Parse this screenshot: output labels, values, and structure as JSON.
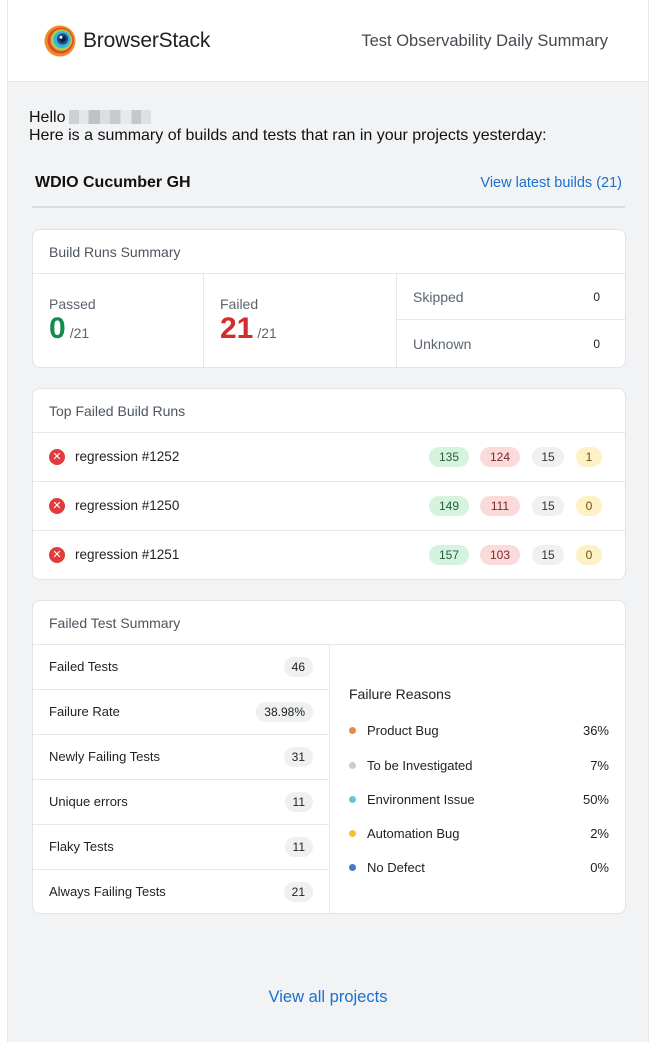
{
  "header": {
    "brand": "BrowserStack",
    "title": "Test Observability Daily Summary"
  },
  "greeting": {
    "hello": "Hello",
    "summary": "Here is a summary of builds and tests that ran in your projects yesterday:"
  },
  "project": {
    "name": "WDIO Cucumber GH",
    "latest_link": "View latest builds (21)"
  },
  "build_runs_summary": {
    "title": "Build Runs Summary",
    "passed_label": "Passed",
    "passed_value": "0",
    "failed_label": "Failed",
    "failed_value": "21",
    "total": "/21",
    "skipped_label": "Skipped",
    "skipped_value": "0",
    "unknown_label": "Unknown",
    "unknown_value": "0"
  },
  "top_failed": {
    "title": "Top Failed Build Runs",
    "runs": [
      {
        "name": "regression #1252",
        "passed": "135",
        "failed": "124",
        "skipped": "15",
        "unknown": "1"
      },
      {
        "name": "regression #1250",
        "passed": "149",
        "failed": "111",
        "skipped": "15",
        "unknown": "0"
      },
      {
        "name": "regression #1251",
        "passed": "157",
        "failed": "103",
        "skipped": "15",
        "unknown": "0"
      }
    ]
  },
  "failed_test_summary": {
    "title": "Failed Test Summary",
    "metrics": [
      {
        "label": "Failed Tests",
        "value": "46"
      },
      {
        "label": "Failure Rate",
        "value": "38.98%"
      },
      {
        "label": "Newly Failing Tests",
        "value": "31"
      },
      {
        "label": "Unique errors",
        "value": "11"
      },
      {
        "label": "Flaky Tests",
        "value": "11"
      },
      {
        "label": "Always Failing Tests",
        "value": "21"
      }
    ],
    "reasons_title": "Failure Reasons",
    "reasons": [
      {
        "label": "Product Bug",
        "pct": "36%",
        "color": "#e8894a"
      },
      {
        "label": "To be Investigated",
        "pct": "7%",
        "color": "#c9ccd0"
      },
      {
        "label": "Environment Issue",
        "pct": "50%",
        "color": "#6cc1d6"
      },
      {
        "label": "Automation Bug",
        "pct": "2%",
        "color": "#f2c232"
      },
      {
        "label": "No Defect",
        "pct": "0%",
        "color": "#4a78c8"
      }
    ]
  },
  "footer": {
    "all_projects": "View all projects"
  },
  "colors": {
    "link": "#1a6fd1",
    "passed": "#168a4a",
    "failed": "#d42c2c"
  }
}
